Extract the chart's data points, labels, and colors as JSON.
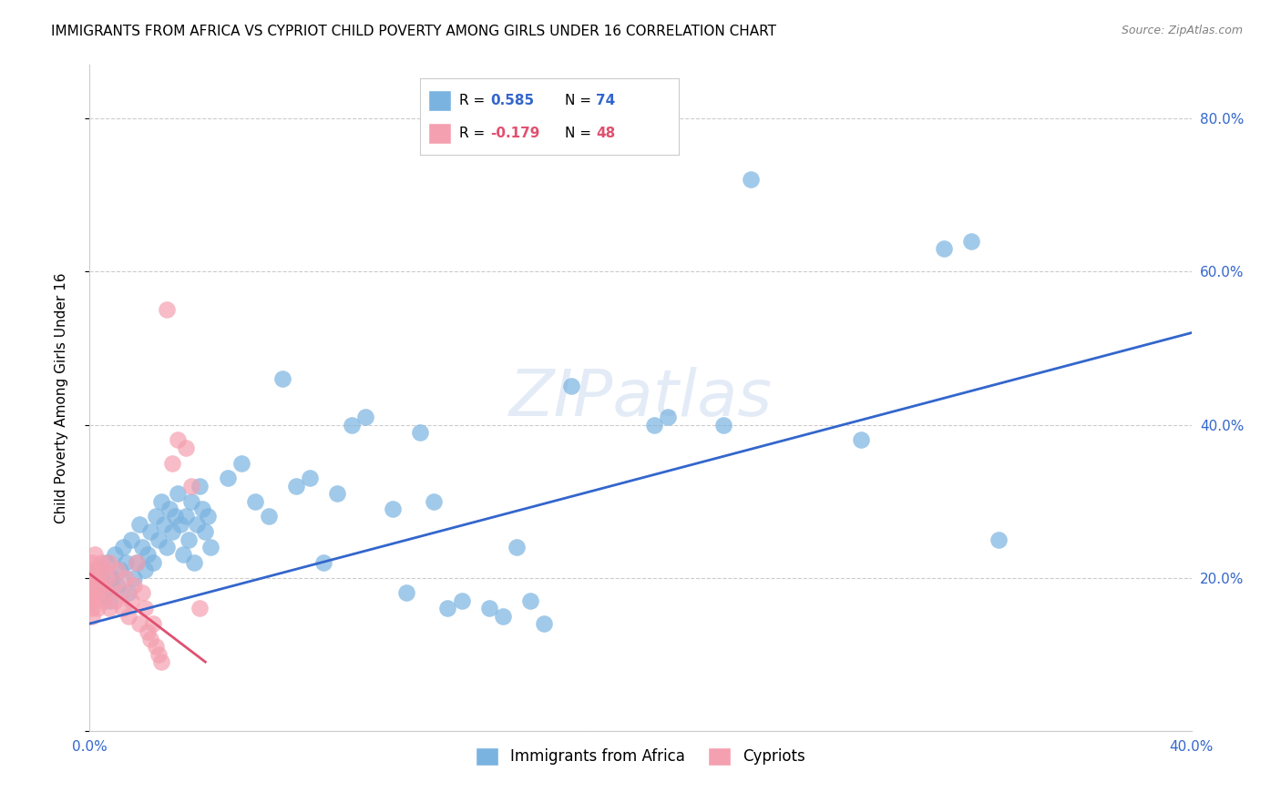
{
  "title": "IMMIGRANTS FROM AFRICA VS CYPRIOT CHILD POVERTY AMONG GIRLS UNDER 16 CORRELATION CHART",
  "source": "Source: ZipAtlas.com",
  "ylabel": "Child Poverty Among Girls Under 16",
  "xlim": [
    0.0,
    0.4
  ],
  "ylim": [
    0.0,
    0.87
  ],
  "xticks": [
    0.0,
    0.05,
    0.1,
    0.15,
    0.2,
    0.25,
    0.3,
    0.35,
    0.4
  ],
  "yticks": [
    0.0,
    0.2,
    0.4,
    0.6,
    0.8
  ],
  "blue_color": "#7ab3e0",
  "pink_color": "#f4a0b0",
  "blue_line_color": "#3366cc",
  "pink_line_color": "#e05070",
  "watermark": "ZIPatlas",
  "legend_blue_r": "0.585",
  "legend_blue_n": "74",
  "legend_pink_r": "-0.179",
  "legend_pink_n": "48",
  "blue_scatter_x": [
    0.002,
    0.003,
    0.004,
    0.005,
    0.006,
    0.007,
    0.008,
    0.009,
    0.01,
    0.011,
    0.012,
    0.013,
    0.014,
    0.015,
    0.016,
    0.017,
    0.018,
    0.019,
    0.02,
    0.021,
    0.022,
    0.023,
    0.024,
    0.025,
    0.026,
    0.027,
    0.028,
    0.029,
    0.03,
    0.031,
    0.032,
    0.033,
    0.034,
    0.035,
    0.036,
    0.037,
    0.038,
    0.039,
    0.04,
    0.041,
    0.042,
    0.043,
    0.044,
    0.05,
    0.055,
    0.06,
    0.065,
    0.07,
    0.075,
    0.08,
    0.085,
    0.09,
    0.095,
    0.1,
    0.11,
    0.115,
    0.12,
    0.125,
    0.13,
    0.135,
    0.145,
    0.15,
    0.155,
    0.16,
    0.165,
    0.175,
    0.205,
    0.21,
    0.23,
    0.24,
    0.28,
    0.31,
    0.32,
    0.33
  ],
  "blue_scatter_y": [
    0.19,
    0.21,
    0.2,
    0.18,
    0.22,
    0.17,
    0.2,
    0.23,
    0.19,
    0.21,
    0.24,
    0.22,
    0.18,
    0.25,
    0.2,
    0.22,
    0.27,
    0.24,
    0.21,
    0.23,
    0.26,
    0.22,
    0.28,
    0.25,
    0.3,
    0.27,
    0.24,
    0.29,
    0.26,
    0.28,
    0.31,
    0.27,
    0.23,
    0.28,
    0.25,
    0.3,
    0.22,
    0.27,
    0.32,
    0.29,
    0.26,
    0.28,
    0.24,
    0.33,
    0.35,
    0.3,
    0.28,
    0.46,
    0.32,
    0.33,
    0.22,
    0.31,
    0.4,
    0.41,
    0.29,
    0.18,
    0.39,
    0.3,
    0.16,
    0.17,
    0.16,
    0.15,
    0.24,
    0.17,
    0.14,
    0.45,
    0.4,
    0.41,
    0.4,
    0.72,
    0.38,
    0.63,
    0.64,
    0.25
  ],
  "pink_scatter_x": [
    0.0,
    0.0,
    0.0,
    0.001,
    0.001,
    0.001,
    0.001,
    0.001,
    0.002,
    0.002,
    0.002,
    0.002,
    0.003,
    0.003,
    0.003,
    0.004,
    0.004,
    0.005,
    0.005,
    0.006,
    0.006,
    0.007,
    0.007,
    0.008,
    0.009,
    0.01,
    0.011,
    0.012,
    0.013,
    0.014,
    0.015,
    0.016,
    0.017,
    0.018,
    0.019,
    0.02,
    0.021,
    0.022,
    0.023,
    0.024,
    0.025,
    0.026,
    0.028,
    0.03,
    0.032,
    0.035,
    0.037,
    0.04
  ],
  "pink_scatter_y": [
    0.19,
    0.21,
    0.17,
    0.18,
    0.22,
    0.16,
    0.2,
    0.15,
    0.21,
    0.19,
    0.17,
    0.23,
    0.18,
    0.2,
    0.16,
    0.19,
    0.22,
    0.17,
    0.21,
    0.2,
    0.18,
    0.22,
    0.16,
    0.19,
    0.17,
    0.21,
    0.18,
    0.16,
    0.2,
    0.15,
    0.17,
    0.19,
    0.22,
    0.14,
    0.18,
    0.16,
    0.13,
    0.12,
    0.14,
    0.11,
    0.1,
    0.09,
    0.55,
    0.35,
    0.38,
    0.37,
    0.32,
    0.16
  ],
  "blue_trendline_x": [
    0.0,
    0.4
  ],
  "blue_trendline_y": [
    0.14,
    0.52
  ],
  "pink_trendline_x": [
    0.0,
    0.042
  ],
  "pink_trendline_y": [
    0.205,
    0.09
  ]
}
